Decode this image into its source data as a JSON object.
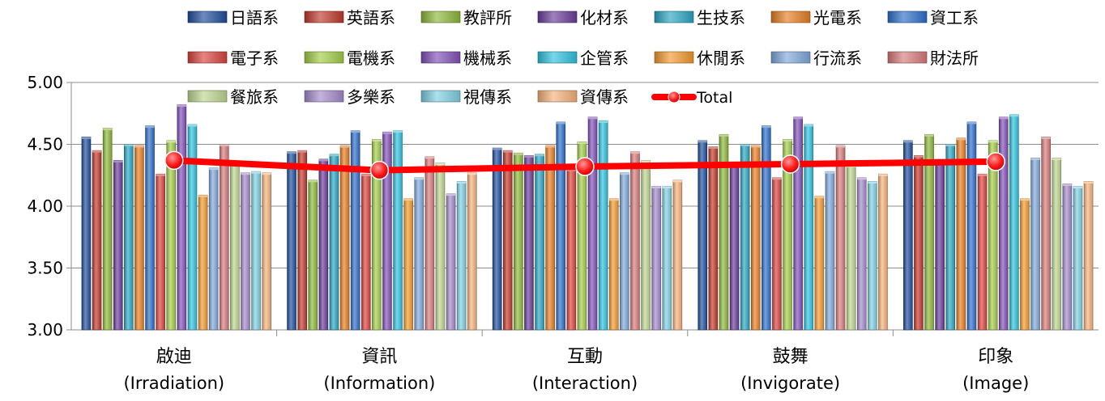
{
  "chart_data": {
    "type": "bar",
    "title": "",
    "xlabel": "",
    "ylabel": "",
    "ylim": [
      3.0,
      5.0
    ],
    "yticks": [
      "3.00",
      "3.50",
      "4.00",
      "4.50",
      "5.00"
    ],
    "grid": true,
    "legend_position": "top",
    "categories": [
      {
        "line1": "啟迪",
        "line2": "(Irradiation)"
      },
      {
        "line1": "資訊",
        "line2": "(Information)"
      },
      {
        "line1": "互動",
        "line2": "(Interaction)"
      },
      {
        "line1": "鼓舞",
        "line2": "(Invigorate)"
      },
      {
        "line1": "印象",
        "line2": "(Image)"
      }
    ],
    "series": [
      {
        "name": "日語系",
        "color": "#1F4E9B",
        "values": [
          4.56,
          4.44,
          4.47,
          4.53,
          4.53
        ]
      },
      {
        "name": "英語系",
        "color": "#C0392B",
        "values": [
          4.45,
          4.45,
          4.45,
          4.48,
          4.41
        ]
      },
      {
        "name": "教評所",
        "color": "#8DB83A",
        "values": [
          4.63,
          4.21,
          4.43,
          4.58,
          4.58
        ]
      },
      {
        "name": "化材系",
        "color": "#6A3D9A",
        "values": [
          4.37,
          4.38,
          4.41,
          4.35,
          4.35
        ]
      },
      {
        "name": "生技系",
        "color": "#2AA6C2",
        "values": [
          4.5,
          4.42,
          4.42,
          4.5,
          4.5
        ]
      },
      {
        "name": "光電系",
        "color": "#E67E22",
        "values": [
          4.49,
          4.49,
          4.49,
          4.49,
          4.55
        ]
      },
      {
        "name": "資工系",
        "color": "#2E6FC9",
        "values": [
          4.65,
          4.61,
          4.68,
          4.65,
          4.68
        ]
      },
      {
        "name": "電子系",
        "color": "#D9443D",
        "values": [
          4.26,
          4.26,
          4.3,
          4.23,
          4.26
        ]
      },
      {
        "name": "電機系",
        "color": "#A2CD48",
        "values": [
          4.53,
          4.54,
          4.52,
          4.54,
          4.53
        ]
      },
      {
        "name": "機械系",
        "color": "#8150B8",
        "values": [
          4.82,
          4.6,
          4.72,
          4.72,
          4.72
        ]
      },
      {
        "name": "企管系",
        "color": "#30C2DE",
        "values": [
          4.66,
          4.61,
          4.69,
          4.66,
          4.74
        ]
      },
      {
        "name": "休閒系",
        "color": "#F29A2E",
        "values": [
          4.09,
          4.06,
          4.06,
          4.08,
          4.06
        ]
      },
      {
        "name": "行流系",
        "color": "#7FA7DB",
        "values": [
          4.31,
          4.23,
          4.27,
          4.28,
          4.39
        ]
      },
      {
        "name": "財法所",
        "color": "#D77A7A",
        "values": [
          4.5,
          4.4,
          4.44,
          4.49,
          4.56
        ]
      },
      {
        "name": "餐旅系",
        "color": "#BDD690",
        "values": [
          4.35,
          4.35,
          4.37,
          4.33,
          4.39
        ]
      },
      {
        "name": "多樂系",
        "color": "#A48ACB",
        "values": [
          4.27,
          4.1,
          4.16,
          4.23,
          4.18
        ]
      },
      {
        "name": "視傳系",
        "color": "#7FD0E3",
        "values": [
          4.28,
          4.2,
          4.16,
          4.2,
          4.16
        ]
      },
      {
        "name": "資傳系",
        "color": "#F5B27A",
        "values": [
          4.27,
          4.27,
          4.21,
          4.26,
          4.2
        ]
      }
    ],
    "line_series": {
      "name": "Total",
      "color": "#FF0000",
      "values": [
        4.37,
        4.29,
        4.32,
        4.34,
        4.36
      ]
    }
  }
}
